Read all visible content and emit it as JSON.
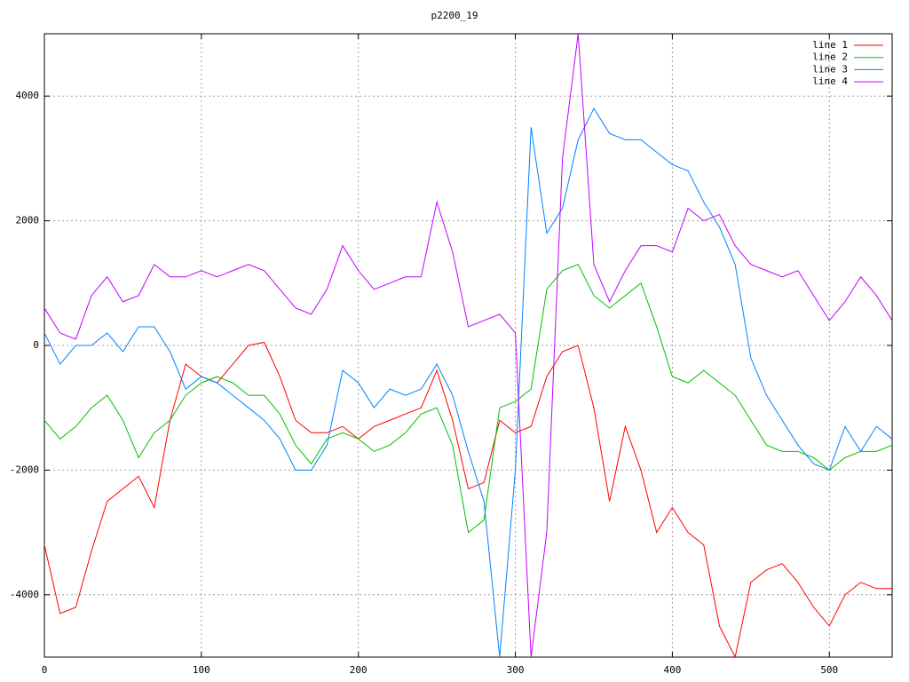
{
  "chart_data": {
    "type": "line",
    "title": "p2200_19",
    "x": [
      0,
      10,
      20,
      30,
      40,
      50,
      60,
      70,
      80,
      90,
      100,
      110,
      120,
      130,
      140,
      150,
      160,
      170,
      180,
      190,
      200,
      210,
      220,
      230,
      240,
      250,
      260,
      270,
      280,
      290,
      300,
      310,
      320,
      330,
      340,
      350,
      360,
      370,
      380,
      390,
      400,
      410,
      420,
      430,
      440,
      450,
      460,
      470,
      480,
      490,
      500,
      510,
      520,
      530,
      540
    ],
    "series": [
      {
        "name": "line 1",
        "color": "#ff0000",
        "values": [
          -3200,
          -4300,
          -4200,
          -3300,
          -2500,
          -2300,
          -2100,
          -2600,
          -1200,
          -300,
          -500,
          -600,
          -300,
          0,
          50,
          -500,
          -1200,
          -1400,
          -1400,
          -1300,
          -1500,
          -1300,
          -1200,
          -1100,
          -1000,
          -400,
          -1200,
          -2300,
          -2200,
          -1200,
          -1400,
          -1300,
          -500,
          -100,
          0,
          -1000,
          -2500,
          -1300,
          -2000,
          -3000,
          -2600,
          -3000,
          -3200,
          -4500,
          -5000,
          -3800,
          -3600,
          -3500,
          -3800,
          -4200,
          -4500,
          -4000,
          -3800,
          -3900,
          -3900
        ]
      },
      {
        "name": "line 2",
        "color": "#00c000",
        "values": [
          -1200,
          -1500,
          -1300,
          -1000,
          -800,
          -1200,
          -1800,
          -1400,
          -1200,
          -800,
          -600,
          -500,
          -600,
          -800,
          -800,
          -1100,
          -1600,
          -1900,
          -1500,
          -1400,
          -1500,
          -1700,
          -1600,
          -1400,
          -1100,
          -1000,
          -1600,
          -3000,
          -2800,
          -1000,
          -900,
          -700,
          900,
          1200,
          1300,
          800,
          600,
          800,
          1000,
          300,
          -500,
          -600,
          -400,
          -600,
          -800,
          -1200,
          -1600,
          -1700,
          -1700,
          -1800,
          -2000,
          -1800,
          -1700,
          -1700,
          -1600
        ]
      },
      {
        "name": "line 3",
        "color": "#0080ff",
        "values": [
          200,
          -300,
          0,
          0,
          200,
          -100,
          300,
          300,
          -100,
          -700,
          -500,
          -600,
          -800,
          -1000,
          -1200,
          -1500,
          -2000,
          -2000,
          -1600,
          -400,
          -600,
          -1000,
          -700,
          -800,
          -700,
          -300,
          -800,
          -1700,
          -2500,
          -5000,
          -2000,
          3500,
          1800,
          2200,
          3300,
          3800,
          3400,
          3300,
          3300,
          3100,
          2900,
          2800,
          2300,
          1900,
          1300,
          -200,
          -800,
          -1200,
          -1600,
          -1900,
          -2000,
          -1300,
          -1700,
          -1300,
          -1500
        ]
      },
      {
        "name": "line 4",
        "color": "#c000ff",
        "values": [
          600,
          200,
          100,
          800,
          1100,
          700,
          800,
          1300,
          1100,
          1100,
          1200,
          1100,
          1200,
          1300,
          1200,
          900,
          600,
          500,
          900,
          1600,
          1200,
          900,
          1000,
          1100,
          1100,
          2300,
          1500,
          300,
          400,
          500,
          200,
          -5000,
          -3000,
          3000,
          5000,
          1300,
          700,
          1200,
          1600,
          1600,
          1500,
          2200,
          2000,
          2100,
          1600,
          1300,
          1200,
          1100,
          1200,
          800,
          400,
          700,
          1100,
          800,
          400
        ]
      }
    ],
    "xlim": [
      0,
      540
    ],
    "ylim": [
      -5000,
      5000
    ],
    "xticks": [
      0,
      100,
      200,
      300,
      400,
      500
    ],
    "yticks": [
      -4000,
      -2000,
      0,
      2000,
      4000
    ],
    "grid": true,
    "legend": "top-right"
  }
}
